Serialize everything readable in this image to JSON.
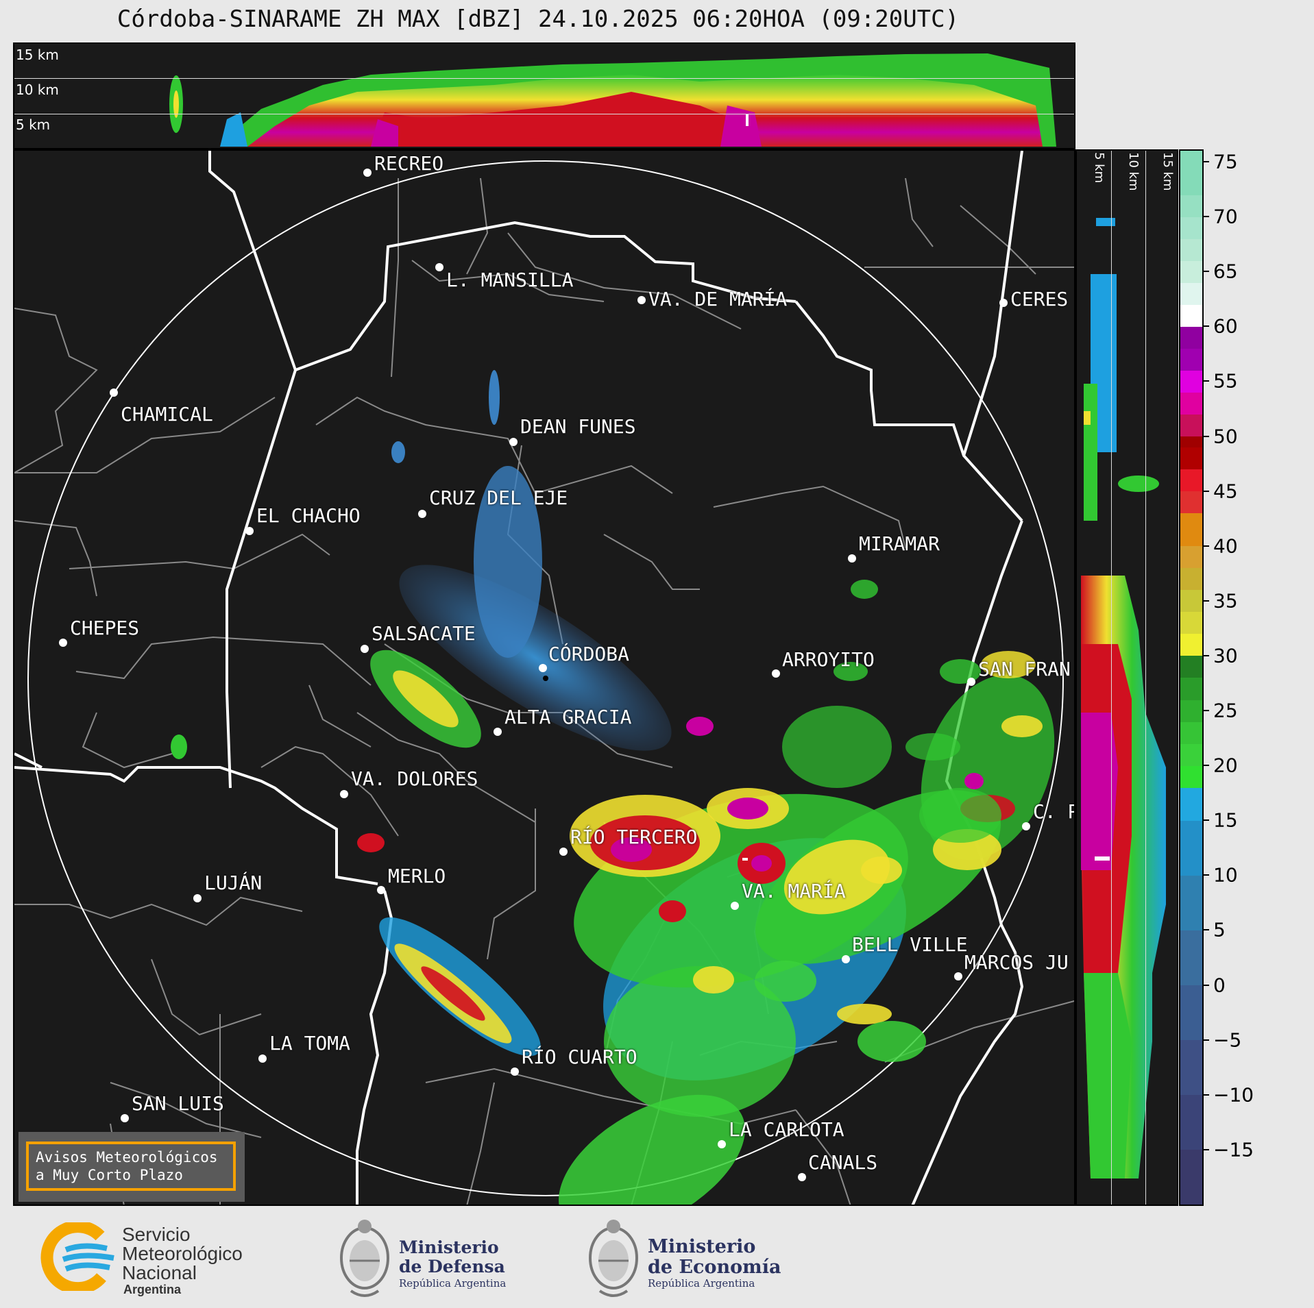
{
  "title": "Córdoba-SINARAME ZH MAX [dBZ] 24.10.2025 06:20HOA (09:20UTC)",
  "top_panel": {
    "altitudes": [
      "15 km",
      "10 km",
      "5 km"
    ]
  },
  "side_panel": {
    "altitudes": [
      "5 km",
      "10 km",
      "15 km"
    ]
  },
  "colorbar": {
    "ticks": [
      "75",
      "70",
      "65",
      "60",
      "55",
      "50",
      "45",
      "40",
      "35",
      "30",
      "25",
      "20",
      "15",
      "10",
      "5",
      "0",
      "−5",
      "−10",
      "−15"
    ],
    "range_dbz": [
      -20,
      76
    ]
  },
  "cities": [
    {
      "name": "RECREO"
    },
    {
      "name": "L. MANSILLA"
    },
    {
      "name": "VA. DE MARÍA"
    },
    {
      "name": "CERES"
    },
    {
      "name": "CHAMICAL"
    },
    {
      "name": "DEAN FUNES"
    },
    {
      "name": "CRUZ DEL EJE"
    },
    {
      "name": "EL CHACHO"
    },
    {
      "name": "MIRAMAR"
    },
    {
      "name": "CHEPES"
    },
    {
      "name": "SALSACATE"
    },
    {
      "name": "CÓRDOBA"
    },
    {
      "name": "ARROYITO"
    },
    {
      "name": "SAN FRAN"
    },
    {
      "name": "ALTA GRACIA"
    },
    {
      "name": "VA. DOLORES"
    },
    {
      "name": "C. P"
    },
    {
      "name": "RÍO TERCERO"
    },
    {
      "name": "MERLO"
    },
    {
      "name": "LUJÁN"
    },
    {
      "name": "VA. MARÍA"
    },
    {
      "name": "BELL VILLE"
    },
    {
      "name": "MARCOS JU"
    },
    {
      "name": "LA TOMA"
    },
    {
      "name": "RÍO CUARTO"
    },
    {
      "name": "SAN LUIS"
    },
    {
      "name": "LA CARLOTA"
    },
    {
      "name": "CANALS"
    }
  ],
  "notice": {
    "line1": "Avisos Meteorológicos",
    "line2": "a Muy Corto Plazo"
  },
  "footer": {
    "smn": {
      "line1": "Servicio",
      "line2": "Meteorológico",
      "line3": "Nacional",
      "line4": "Argentina"
    },
    "defensa": {
      "line1": "Ministerio",
      "line2": "de Defensa",
      "sub": "República Argentina"
    },
    "economia": {
      "line1": "Ministerio",
      "line2": "de Economía",
      "sub": "República Argentina"
    }
  },
  "colors": {
    "background": "#1a1a1a",
    "notice_border": "#f5a100",
    "smn_blue": "#29a8e0",
    "smn_yellow": "#f5a800"
  }
}
